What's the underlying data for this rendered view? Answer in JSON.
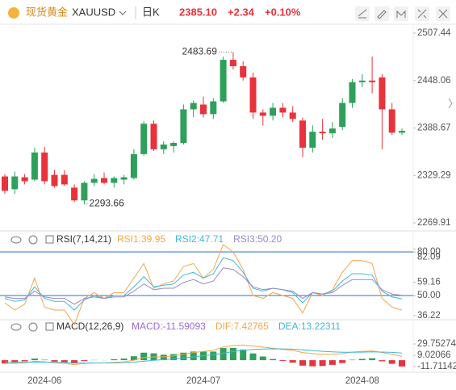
{
  "header": {
    "name": "现货黄金",
    "symbol": "XAUUSD",
    "period": "日K",
    "price": "2385.10",
    "change": "+2.34",
    "change_pct": "+0.10%"
  },
  "chart_data": [
    {
      "type": "candlestick",
      "up_color": "#2ea05b",
      "down_color": "#e8323c",
      "categories": [
        null,
        null,
        null,
        null,
        "2024-06",
        null,
        null,
        null,
        null,
        null,
        null,
        null,
        null,
        null,
        null,
        null,
        null,
        null,
        null,
        null,
        "2024-07",
        null,
        null,
        null,
        null,
        null,
        null,
        null,
        null,
        null,
        null,
        null,
        null,
        null,
        null,
        null,
        "2024-08",
        null,
        null,
        null,
        null
      ],
      "open": [
        2328,
        2312,
        2327,
        2324,
        2358,
        2330,
        2330,
        2314,
        2298,
        2320,
        2326,
        2320,
        2324,
        2326,
        2356,
        2394,
        2362,
        2366,
        2370,
        2412,
        2418,
        2406,
        2422,
        2474,
        2466,
        2452,
        2408,
        2404,
        2414,
        2408,
        2398,
        2364,
        2384,
        2382,
        2390,
        2420,
        2446,
        2448,
        2452,
        2412,
        2382.76
      ],
      "high": [
        2331,
        2334,
        2331,
        2364,
        2365,
        2336,
        2336,
        2318,
        2322,
        2331,
        2333,
        2328,
        2330,
        2362,
        2397,
        2398,
        2372,
        2372,
        2418,
        2423,
        2428,
        2426,
        2478,
        2483.69,
        2472,
        2458,
        2412,
        2420,
        2420,
        2416,
        2402,
        2392,
        2400,
        2396,
        2426,
        2450,
        2456,
        2478,
        2456,
        2420,
        2388
      ],
      "low": [
        2306,
        2306,
        2318,
        2322,
        2318,
        2314,
        2316,
        2296,
        2293.66,
        2316,
        2318,
        2314,
        2318,
        2324,
        2354,
        2360,
        2356,
        2358,
        2368,
        2402,
        2402,
        2400,
        2420,
        2462,
        2448,
        2400,
        2392,
        2398,
        2402,
        2396,
        2352,
        2358,
        2374,
        2376,
        2386,
        2414,
        2440,
        2432,
        2362,
        2380,
        2380
      ],
      "close": [
        2310,
        2328,
        2322,
        2358,
        2322,
        2316,
        2318,
        2298,
        2320,
        2325,
        2320,
        2326,
        2327,
        2356,
        2394,
        2362,
        2368,
        2370,
        2412,
        2420,
        2406,
        2422,
        2474,
        2466,
        2452,
        2408,
        2404,
        2414,
        2408,
        2400,
        2364,
        2384,
        2382,
        2388,
        2420,
        2446,
        2448,
        2446,
        2412,
        2382.76,
        2385.1
      ],
      "ylim": [
        2269.91,
        2507.44
      ],
      "yticks": [
        2507.44,
        2448.06,
        2388.67,
        2329.29,
        2269.91
      ]
    },
    {
      "type": "line",
      "title": "RSI(7,14,21)",
      "ylim": [
        33.9,
        86.67
      ],
      "yticks": [
        {
          "value": 80,
          "label": "80.00"
        },
        82.09,
        59.16,
        {
          "value": 50,
          "label": "50.00"
        },
        36.22
      ],
      "reference_lines": [
        {
          "value": 80,
          "label": "80.00"
        },
        {
          "value": 50,
          "label": "50.00"
        }
      ],
      "reference_color": "#2b6fd6",
      "series": [
        {
          "name": "RSI1",
          "label": "RSI1:39.95",
          "color": "#f5a54a",
          "values": [
            45,
            40,
            44,
            62,
            42,
            40,
            40,
            30,
            48,
            52,
            48,
            52,
            52,
            62,
            72,
            55,
            58,
            60,
            70,
            72,
            62,
            68,
            85,
            80,
            68,
            50,
            48,
            52,
            50,
            48,
            38,
            52,
            50,
            54,
            66,
            74,
            74,
            72,
            48,
            42,
            39.95
          ]
        },
        {
          "name": "RSI2",
          "label": "RSI2:47.71",
          "color": "#3fb8d8",
          "values": [
            48,
            46,
            47,
            56,
            48,
            46,
            46,
            40,
            47,
            50,
            48,
            50,
            50,
            56,
            63,
            56,
            57,
            58,
            64,
            66,
            62,
            65,
            76,
            74,
            66,
            55,
            53,
            55,
            54,
            52,
            45,
            52,
            51,
            53,
            60,
            65,
            65,
            64,
            53,
            49,
            47.71
          ]
        },
        {
          "name": "RSI3",
          "label": "RSI3:50.20",
          "color": "#9a86c8",
          "values": [
            49,
            48,
            48,
            53,
            49,
            48,
            48,
            44,
            48,
            49,
            48,
            49,
            49,
            53,
            58,
            54,
            55,
            55,
            59,
            61,
            58,
            60,
            69,
            68,
            63,
            56,
            54,
            55,
            54,
            53,
            48,
            52,
            51,
            52,
            57,
            61,
            61,
            61,
            54,
            51,
            50.2
          ]
        }
      ]
    },
    {
      "type": "macd",
      "title": "MACD(12,26,9)",
      "ylim": [
        -20.6,
        53.44
      ],
      "yticks": [
        29.75274,
        9.02066,
        -11.71142
      ],
      "up_color": "#2ea05b",
      "down_color": "#e8323c",
      "histogram": {
        "name": "MACD",
        "label": "MACD:-11.59093",
        "color": "#9b6bd4",
        "values": [
          -6,
          -4.8,
          -2.2,
          3,
          0.8,
          -2.6,
          -3.6,
          -6,
          -1.6,
          0.4,
          0.2,
          1.8,
          3,
          7.2,
          13.8,
          12.6,
          10,
          11.2,
          13.8,
          15.8,
          15.8,
          15.8,
          22.2,
          22.6,
          19.6,
          12.4,
          6.8,
          2.2,
          -1.4,
          -4.4,
          -10,
          -11.2,
          -10.6,
          -8.6,
          -5.2,
          0.8,
          2.4,
          3.6,
          -2,
          -6.6,
          -11.59093
        ]
      },
      "series": [
        {
          "name": "DIF",
          "label": "DIF:7.42765",
          "color": "#f5a54a",
          "values": [
            -6,
            -6,
            -5,
            -2,
            -3,
            -5,
            -6,
            -8,
            -6,
            -5,
            -5,
            -4,
            -3,
            0,
            5,
            6,
            6,
            8,
            11,
            14,
            16,
            18,
            24,
            27,
            28,
            26,
            24,
            22,
            20,
            18,
            14,
            12,
            11,
            11,
            12,
            15,
            16,
            17,
            14,
            11,
            7.42765
          ]
        },
        {
          "name": "DEA",
          "label": "DEA:13.22311",
          "color": "#3fb8d8",
          "values": [
            -3,
            -3.6,
            -3.9,
            -3.5,
            -3.4,
            -3.7,
            -4.2,
            -5,
            -5.2,
            -5.2,
            -5.1,
            -4.9,
            -4.5,
            -3.6,
            -1.9,
            -0.3,
            1,
            2.4,
            4.1,
            6.1,
            8.1,
            10.1,
            12.9,
            15.7,
            18.2,
            19.8,
            20.6,
            20.9,
            20.7,
            20.2,
            19,
            17.6,
            16.3,
            15.3,
            14.6,
            14.6,
            14.8,
            15.2,
            15,
            14.3,
            13.22311
          ]
        }
      ]
    }
  ]
}
